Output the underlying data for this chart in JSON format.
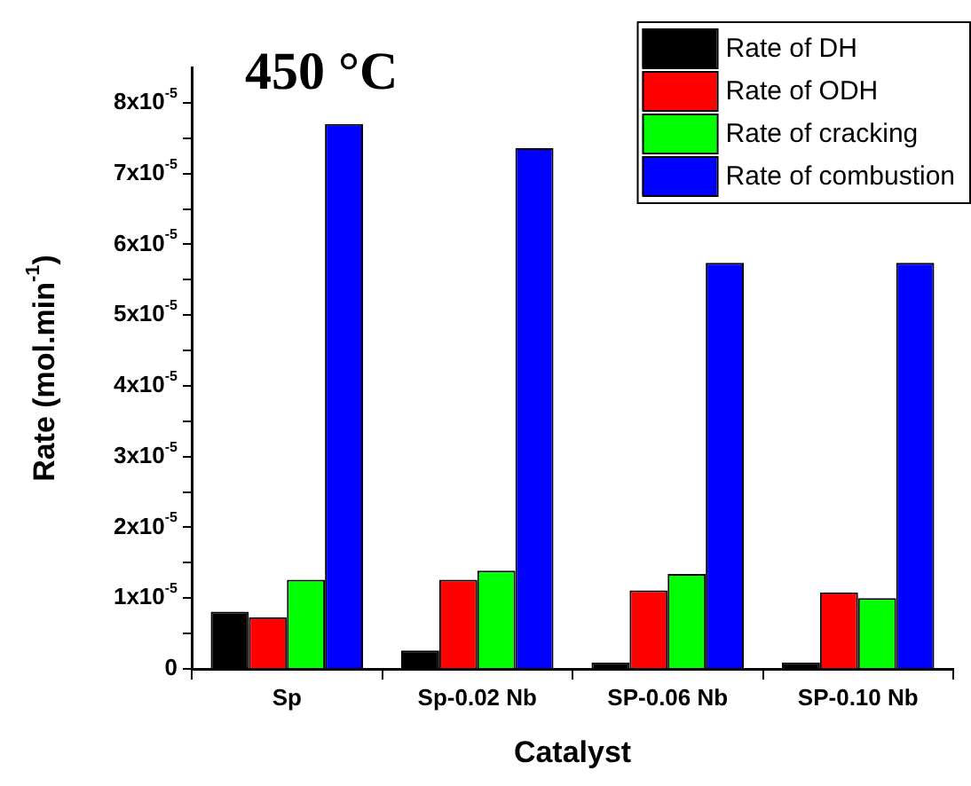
{
  "chart_data": {
    "type": "bar",
    "annotations": [
      "450 °C"
    ],
    "xlabel": "Catalyst",
    "ylabel": "Rate (mol.min$^{-1}$)",
    "categories": [
      "Sp",
      "Sp-0.02 Nb",
      "SP-0.06 Nb",
      "SP-0.10 Nb"
    ],
    "series": [
      {
        "name": "Rate of DH",
        "color": "#000000",
        "values": [
          8.1e-06,
          2.6e-06,
          9e-07,
          9e-07
        ]
      },
      {
        "name": "Rate of ODH",
        "color": "#ff0000",
        "values": [
          7.3e-06,
          1.26e-05,
          1.11e-05,
          1.08e-05
        ]
      },
      {
        "name": "Rate of cracking",
        "color": "#00ff00",
        "values": [
          1.26e-05,
          1.39e-05,
          1.34e-05,
          1e-05
        ]
      },
      {
        "name": "Rate of combustion",
        "color": "#0000ff",
        "values": [
          7.7e-05,
          7.36e-05,
          5.74e-05,
          5.74e-05
        ]
      }
    ],
    "ylim": [
      0,
      8.5e-05
    ],
    "yticks": [
      0,
      {
        "value": 5e-06,
        "label": null
      },
      {
        "value": 1e-05,
        "label": "1x10$^{-5}$"
      },
      {
        "value": 1.5e-05,
        "label": null
      },
      {
        "value": 2e-05,
        "label": "2x10$^{-5}$"
      },
      {
        "value": 2.5e-05,
        "label": null
      },
      {
        "value": 3e-05,
        "label": "3x10$^{-5}$"
      },
      {
        "value": 3.5e-05,
        "label": null
      },
      {
        "value": 4e-05,
        "label": "4x10$^{-5}$"
      },
      {
        "value": 4.5e-05,
        "label": null
      },
      {
        "value": 5e-05,
        "label": "5x10$^{-5}$"
      },
      {
        "value": 5.5e-05,
        "label": null
      },
      {
        "value": 6e-05,
        "label": "6x10$^{-5}$"
      },
      {
        "value": 6.5e-05,
        "label": null
      },
      {
        "value": 7e-05,
        "label": "7x10$^{-5}$"
      },
      {
        "value": 7.5e-05,
        "label": null
      },
      {
        "value": 8e-05,
        "label": "8x10$^{-5}$"
      }
    ],
    "legend": "top right"
  }
}
